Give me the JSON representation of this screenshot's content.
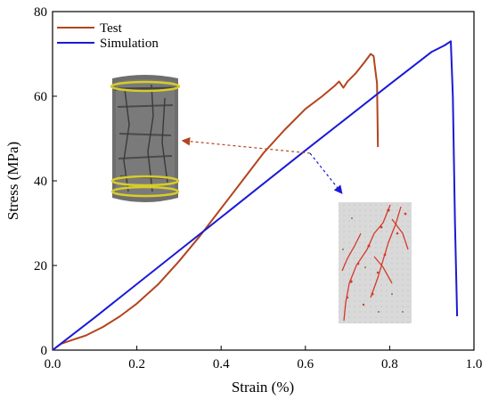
{
  "chart_data": {
    "type": "line",
    "xlabel": "Strain (%)",
    "ylabel": "Stress (MPa)",
    "xlim": [
      0.0,
      1.0
    ],
    "ylim": [
      0,
      80
    ],
    "xticks": [
      "0.0",
      "0.2",
      "0.4",
      "0.6",
      "0.8",
      "1.0"
    ],
    "yticks": [
      "0",
      "20",
      "40",
      "60",
      "80"
    ],
    "legend_position": "top-left",
    "series": [
      {
        "name": "Test",
        "color": "#b3441e",
        "x": [
          0.0,
          0.02,
          0.05,
          0.08,
          0.12,
          0.16,
          0.2,
          0.25,
          0.3,
          0.35,
          0.4,
          0.45,
          0.5,
          0.55,
          0.6,
          0.64,
          0.67,
          0.68,
          0.69,
          0.7,
          0.72,
          0.74,
          0.755,
          0.762,
          0.765,
          0.77,
          0.772
        ],
        "y": [
          0.0,
          1.5,
          2.5,
          3.5,
          5.5,
          8.0,
          11.0,
          15.5,
          21.0,
          27.0,
          33.5,
          40.0,
          46.5,
          52.0,
          57.0,
          60.0,
          62.5,
          63.5,
          62.0,
          63.5,
          65.5,
          68.0,
          70.0,
          69.5,
          67.0,
          63.0,
          48.0
        ]
      },
      {
        "name": "Simulation",
        "color": "#1a1ad6",
        "x": [
          0.0,
          0.1,
          0.2,
          0.3,
          0.4,
          0.5,
          0.6,
          0.7,
          0.8,
          0.9,
          0.93,
          0.945,
          0.95,
          0.955,
          0.96
        ],
        "y": [
          0.0,
          7.7,
          15.6,
          23.5,
          31.4,
          39.3,
          47.2,
          55.0,
          62.8,
          70.5,
          72.0,
          73.0,
          60.0,
          30.0,
          8.0
        ]
      }
    ],
    "annotations": [
      {
        "target": "test-specimen-photo",
        "arrow_color": "#b3441e",
        "style": "dashed"
      },
      {
        "target": "simulation-crack-pattern",
        "arrow_color": "#1a1ad6",
        "style": "dashed"
      }
    ]
  }
}
